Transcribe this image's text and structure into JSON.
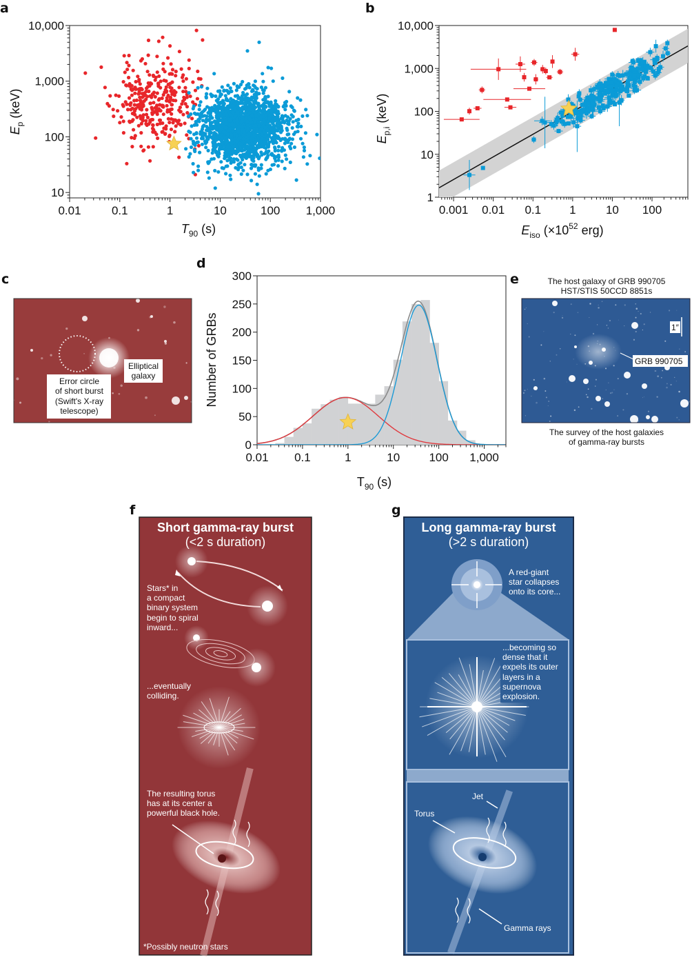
{
  "panel_labels": {
    "a": "a",
    "b": "b",
    "c": "c",
    "d": "d",
    "e": "e",
    "f": "f",
    "g": "g"
  },
  "chart_data": [
    {
      "panel": "a",
      "type": "scatter",
      "xscale": "log",
      "yscale": "log",
      "xlim": [
        0.01,
        1000
      ],
      "ylim": [
        8,
        10000
      ],
      "xlabel": {
        "main": "T",
        "sub": "90",
        "rest": " (s)"
      },
      "ylabel": {
        "main": "E",
        "sub": "p",
        "rest": " (keV)"
      },
      "xticks": [
        0.01,
        0.1,
        1,
        10,
        100,
        1000
      ],
      "xtick_labels": [
        "0.01",
        "0.1",
        "1",
        "10",
        "100",
        "1,000"
      ],
      "yticks": [
        10,
        100,
        1000,
        10000
      ],
      "ytick_labels": [
        "10",
        "100",
        "1,000",
        "10,000"
      ],
      "series": [
        {
          "color": "#e8262a",
          "n": 330,
          "log10_x_mean": -0.3,
          "log10_x_sd": 0.4,
          "log10_x_max": 0.7,
          "log10_y_mean": 2.6,
          "log10_y_sd": 0.38,
          "seed": 11,
          "extra_points": [
            [
              0.033,
              95
            ],
            [
              0.6,
              5200
            ],
            [
              1.0,
              4300
            ],
            [
              0.4,
              37
            ],
            [
              3.2,
              21
            ]
          ]
        },
        {
          "color": "#0b9bd7",
          "n": 1700,
          "log10_x_mean": 1.45,
          "log10_x_sd": 0.45,
          "log10_x_min": 0.3,
          "log10_y_mean": 2.15,
          "log10_y_sd": 0.33,
          "seed": 23,
          "extra_points": [
            [
              60,
              5000
            ],
            [
              850,
              110
            ],
            [
              620,
              46
            ],
            [
              58,
              9.5
            ],
            [
              35,
              3500
            ],
            [
              8,
              12
            ]
          ]
        }
      ],
      "highlight_star": {
        "x": 1.2,
        "y": 75,
        "color": "#f7d154"
      }
    },
    {
      "panel": "b",
      "type": "scatter",
      "xscale": "log",
      "yscale": "log",
      "xlim": [
        0.00043,
        800
      ],
      "ylim": [
        1,
        10000
      ],
      "xlabel": {
        "main": "E",
        "sub": "iso",
        "rest": " (×10",
        "sup": "52",
        "tail": " erg)"
      },
      "ylabel": {
        "main": "E",
        "sub": "p,i",
        "rest": " (keV)"
      },
      "xticks": [
        0.001,
        0.01,
        0.1,
        1,
        10,
        100
      ],
      "xtick_labels": [
        "0.001",
        "0.01",
        "0.1",
        "1",
        "10",
        "100"
      ],
      "yticks": [
        1,
        10,
        100,
        1000,
        10000
      ],
      "ytick_labels": [
        "1",
        "10",
        "100",
        "1,000",
        "10,000"
      ],
      "fit_line": {
        "norm": 98.6,
        "slope": 0.527,
        "band_dex": 0.4,
        "color": "#111111",
        "band_color": "#d3d3d3"
      },
      "red_points": {
        "color": "#e8262a",
        "columns": [
          "x",
          "y",
          "xerr_dex",
          "yerr_dex"
        ],
        "rows": [
          [
            0.0016,
            65,
            0.45,
            0.04
          ],
          [
            0.0025,
            101,
            0.04,
            0.08
          ],
          [
            0.004,
            118,
            0.1,
            0.03
          ],
          [
            0.0052,
            316,
            0.08,
            0.08
          ],
          [
            0.0135,
            960,
            0.7,
            0.25
          ],
          [
            0.0224,
            189,
            0.6,
            0.02
          ],
          [
            0.027,
            124,
            0.15,
            0.04
          ],
          [
            0.048,
            1260,
            0.12,
            0.18
          ],
          [
            0.06,
            624,
            0.04,
            0.1
          ],
          [
            0.081,
            337,
            0.4,
            0.02
          ],
          [
            0.107,
            1380,
            0.08,
            0.08
          ],
          [
            0.118,
            558,
            0.06,
            0.12
          ],
          [
            0.175,
            960,
            0.06,
            0.1
          ],
          [
            0.21,
            870,
            0.04,
            0.08
          ],
          [
            0.26,
            620,
            0.08,
            0.04
          ],
          [
            0.31,
            1445,
            0.04,
            0.15
          ],
          [
            0.48,
            830,
            0.08,
            0.07
          ],
          [
            1.16,
            2140,
            0.1,
            0.15
          ],
          [
            11.5,
            7900,
            0,
            0
          ]
        ]
      },
      "blue_points": {
        "color": "#0b9bd7",
        "columns": [
          "x",
          "y",
          "xerr_dex",
          "yerr_dex"
        ],
        "rows": [
          [
            0.0025,
            3.3,
            0.15,
            0.35
          ],
          [
            0.0055,
            4.8,
            0,
            0
          ],
          [
            0.105,
            22,
            0.06,
            0.08
          ],
          [
            0.2,
            55,
            0.15,
            0.6
          ],
          [
            1.3,
            45,
            0.1,
            0.6
          ],
          [
            0.17,
            60,
            0.2,
            0.1
          ],
          [
            7.5,
            130,
            0,
            0
          ],
          [
            125,
            3300,
            0.05,
            0.15
          ],
          [
            15,
            160,
            0.1,
            0.55
          ]
        ],
        "generated": {
          "n": 260,
          "log10_x_mean": 1.0,
          "log10_x_sd": 0.7,
          "log10_x_min": -0.6,
          "log10_x_max": 2.6,
          "scatter_dex": 0.17,
          "seed": 5
        }
      },
      "highlight_star": {
        "x": 0.8,
        "y": 115,
        "color": "#f7d154"
      }
    },
    {
      "panel": "d",
      "type": "bar",
      "xscale": "log",
      "xlim": [
        0.01,
        3000
      ],
      "ylim": [
        0,
        300
      ],
      "xlabel": {
        "main": "T",
        "sub": "90",
        "rest": " (s)"
      },
      "ylabel": "Number of GRBs",
      "xticks": [
        0.01,
        0.1,
        1,
        10,
        100,
        1000
      ],
      "xtick_labels": [
        "0.01",
        "0.1",
        "1",
        "10",
        "100",
        "1,000"
      ],
      "yticks": [
        0,
        50,
        100,
        150,
        200,
        250,
        300
      ],
      "ytick_labels": [
        "0",
        "50",
        "100",
        "150",
        "200",
        "250",
        "300"
      ],
      "bin_log10_start": -1.6,
      "bin_log10_width": 0.2,
      "counts": [
        3,
        14,
        30,
        38,
        64,
        72,
        80,
        85,
        73,
        73,
        73,
        89,
        104,
        151,
        219,
        250,
        257,
        181,
        113,
        43,
        25,
        8
      ],
      "bar_color": "#d1d2d4",
      "fits": [
        {
          "color": "#e0393e",
          "amplitude": 84,
          "log10_center": -0.05,
          "log10_sigma": 0.72
        },
        {
          "color": "#1a9ad6",
          "amplitude": 248,
          "log10_center": 1.56,
          "log10_sigma": 0.4
        }
      ],
      "sum_color": "#8a8a8a",
      "highlight_star": {
        "x": 1.0,
        "y": 40,
        "color": "#f7d154"
      }
    }
  ],
  "panel_c": {
    "label_galaxy": [
      "Elliptical",
      "galaxy"
    ],
    "label_error_circle": [
      "Error circle",
      "of short burst",
      "(Swift's X-ray",
      "telescope)"
    ]
  },
  "panel_e": {
    "title": [
      "The host galaxy of GRB 990705",
      "HST/STIS 50CCD 8851s"
    ],
    "scale_label": "1″",
    "grb_label": "GRB 990705",
    "caption": [
      "The survey of the host galaxies",
      "of gamma-ray bursts"
    ]
  },
  "panel_f": {
    "title": "Short gamma-ray burst",
    "subtitle": "(<2 s duration)",
    "text_spiral": [
      "Stars* in",
      "a compact",
      "binary system",
      "begin to spiral",
      "inward..."
    ],
    "text_collide": [
      "...eventually",
      "colliding."
    ],
    "text_torus": [
      "The resulting torus",
      "has at its center a",
      "powerful black hole."
    ],
    "footnote": "*Possibly neutron stars"
  },
  "panel_g": {
    "title": "Long gamma-ray burst",
    "subtitle": "(>2 s duration)",
    "text_collapse": [
      "A red-giant",
      "star collapses",
      "onto its core..."
    ],
    "text_supernova": [
      "...becoming so",
      "dense that it",
      "expels its outer",
      "layers in a",
      "supernova",
      "explosion."
    ],
    "label_jet": "Jet",
    "label_torus": "Torus",
    "label_gamma": "Gamma rays"
  }
}
